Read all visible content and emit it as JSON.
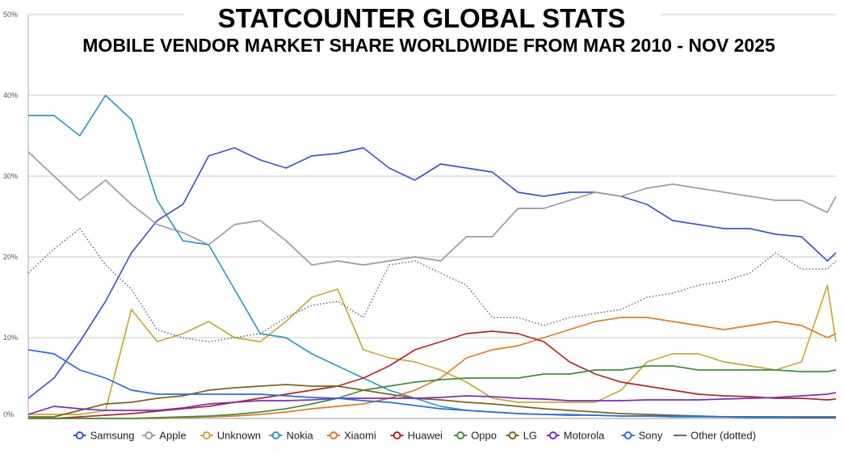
{
  "chart_data": {
    "type": "line",
    "title": "STATCOUNTER GLOBAL STATS",
    "subtitle": "MOBILE VENDOR MARKET SHARE WORLDWIDE FROM MAR 2010 - NOV 2025",
    "xlabel": "",
    "ylabel": "",
    "ylim": [
      0,
      50
    ],
    "yticks": [
      "0%",
      "10%",
      "20%",
      "30%",
      "40%",
      "50%"
    ],
    "grid": true,
    "legend_position": "bottom",
    "x": [
      0,
      6,
      12,
      18,
      24,
      30,
      36,
      42,
      48,
      54,
      60,
      66,
      72,
      78,
      84,
      90,
      96,
      102,
      108,
      114,
      120,
      126,
      132,
      138,
      144,
      150,
      156,
      162,
      168,
      174,
      180,
      186,
      188
    ],
    "x_unit": "months since Mar 2010",
    "series": [
      {
        "name": "Samsung",
        "color": "#3e55c9",
        "values": [
          2.5,
          5.0,
          9.5,
          14.5,
          20.5,
          24.5,
          26.5,
          32.5,
          33.5,
          32.0,
          31.0,
          32.5,
          32.8,
          33.5,
          31.0,
          29.5,
          31.5,
          31.0,
          30.5,
          28.0,
          27.5,
          28.0,
          28.0,
          27.5,
          26.5,
          24.5,
          24.0,
          23.5,
          23.5,
          22.8,
          22.5,
          19.5,
          20.5
        ]
      },
      {
        "name": "Apple",
        "color": "#9c9c9c",
        "values": [
          33.0,
          30.0,
          27.0,
          29.5,
          26.5,
          24.0,
          23.0,
          21.5,
          24.0,
          24.5,
          22.0,
          19.0,
          19.5,
          19.0,
          19.5,
          20.0,
          19.5,
          22.5,
          22.5,
          26.0,
          26.0,
          27.0,
          28.0,
          27.5,
          28.5,
          29.0,
          28.5,
          28.0,
          27.5,
          27.0,
          27.0,
          25.5,
          27.5
        ]
      },
      {
        "name": "Unknown",
        "color": "#c8aa33",
        "values": [
          0.5,
          0.5,
          0.5,
          1.0,
          13.5,
          9.5,
          10.5,
          12.0,
          10.0,
          9.5,
          12.0,
          15.0,
          16.0,
          8.5,
          7.5,
          7.0,
          6.0,
          4.5,
          2.5,
          2.0,
          2.0,
          2.0,
          2.0,
          3.5,
          7.0,
          8.0,
          8.0,
          7.0,
          6.5,
          6.0,
          7.0,
          16.5,
          9.5
        ]
      },
      {
        "name": "Nokia",
        "color": "#2a9cc4",
        "values": [
          37.5,
          37.5,
          35.0,
          40.0,
          37.0,
          27.0,
          22.0,
          21.5,
          16.0,
          10.5,
          10.0,
          8.0,
          6.5,
          5.0,
          3.5,
          2.5,
          1.5,
          1.0,
          0.8,
          0.6,
          0.5,
          0.5,
          0.4,
          0.3,
          0.3,
          0.2,
          0.2,
          0.2,
          0.1,
          0.1,
          0.1,
          0.1,
          0.1
        ]
      },
      {
        "name": "Xiaomi",
        "color": "#e07b22",
        "values": [
          0.0,
          0.0,
          0.0,
          0.0,
          0.0,
          0.0,
          0.1,
          0.2,
          0.3,
          0.5,
          0.8,
          1.2,
          1.5,
          1.8,
          2.5,
          3.5,
          5.0,
          7.5,
          8.5,
          9.0,
          10.0,
          11.0,
          12.0,
          12.5,
          12.5,
          12.0,
          11.5,
          11.0,
          11.5,
          12.0,
          11.5,
          10.0,
          10.5
        ]
      },
      {
        "name": "Huawei",
        "color": "#b52525",
        "values": [
          0.0,
          0.0,
          0.2,
          0.4,
          0.6,
          0.9,
          1.2,
          1.5,
          2.0,
          2.5,
          3.0,
          3.5,
          4.0,
          5.0,
          6.5,
          8.5,
          9.5,
          10.5,
          10.8,
          10.5,
          9.5,
          7.0,
          5.5,
          4.5,
          4.0,
          3.5,
          3.0,
          2.8,
          2.7,
          2.5,
          2.5,
          2.3,
          2.4
        ]
      },
      {
        "name": "Oppo",
        "color": "#3e8f3e",
        "values": [
          0.0,
          0.0,
          0.0,
          0.0,
          0.0,
          0.1,
          0.2,
          0.3,
          0.5,
          0.8,
          1.2,
          1.8,
          2.5,
          3.5,
          4.0,
          4.5,
          4.8,
          5.0,
          5.0,
          5.0,
          5.5,
          5.5,
          6.0,
          6.0,
          6.5,
          6.5,
          6.0,
          6.0,
          6.0,
          6.0,
          5.8,
          5.8,
          6.0
        ]
      },
      {
        "name": "LG",
        "color": "#7d6418",
        "values": [
          0.2,
          0.2,
          1.0,
          1.8,
          2.0,
          2.5,
          2.8,
          3.5,
          3.8,
          4.0,
          4.2,
          4.0,
          4.0,
          3.5,
          3.0,
          2.5,
          2.3,
          2.0,
          1.8,
          1.5,
          1.2,
          1.0,
          0.8,
          0.6,
          0.5,
          0.4,
          0.3,
          0.2,
          0.2,
          0.2,
          0.1,
          0.1,
          0.1
        ]
      },
      {
        "name": "Motorola",
        "color": "#7a2bc4",
        "values": [
          0.5,
          1.5,
          1.2,
          1.0,
          1.0,
          1.0,
          1.3,
          1.8,
          2.0,
          2.2,
          2.2,
          2.3,
          2.5,
          2.5,
          2.5,
          2.5,
          2.6,
          2.8,
          2.7,
          2.5,
          2.4,
          2.2,
          2.2,
          2.2,
          2.3,
          2.3,
          2.3,
          2.4,
          2.5,
          2.6,
          2.8,
          3.0,
          3.2
        ]
      },
      {
        "name": "Sony",
        "color": "#2a6fd6",
        "values": [
          8.5,
          8.0,
          6.0,
          5.0,
          3.5,
          3.0,
          3.0,
          3.0,
          3.0,
          3.0,
          2.8,
          2.6,
          2.5,
          2.2,
          2.0,
          1.6,
          1.2,
          1.0,
          0.8,
          0.6,
          0.5,
          0.4,
          0.4,
          0.3,
          0.3,
          0.3,
          0.3,
          0.2,
          0.2,
          0.2,
          0.2,
          0.2,
          0.2
        ]
      },
      {
        "name": "Other (dotted)",
        "color": "#666666",
        "dotted": true,
        "values": [
          18.0,
          21.0,
          23.5,
          19.0,
          16.0,
          11.0,
          10.0,
          9.5,
          10.0,
          10.5,
          12.5,
          14.0,
          14.5,
          12.5,
          19.0,
          19.5,
          18.0,
          16.5,
          12.5,
          12.5,
          11.5,
          12.5,
          13.0,
          13.5,
          15.0,
          15.5,
          16.5,
          17.0,
          18.0,
          20.5,
          18.5,
          18.5,
          19.5
        ]
      }
    ]
  }
}
